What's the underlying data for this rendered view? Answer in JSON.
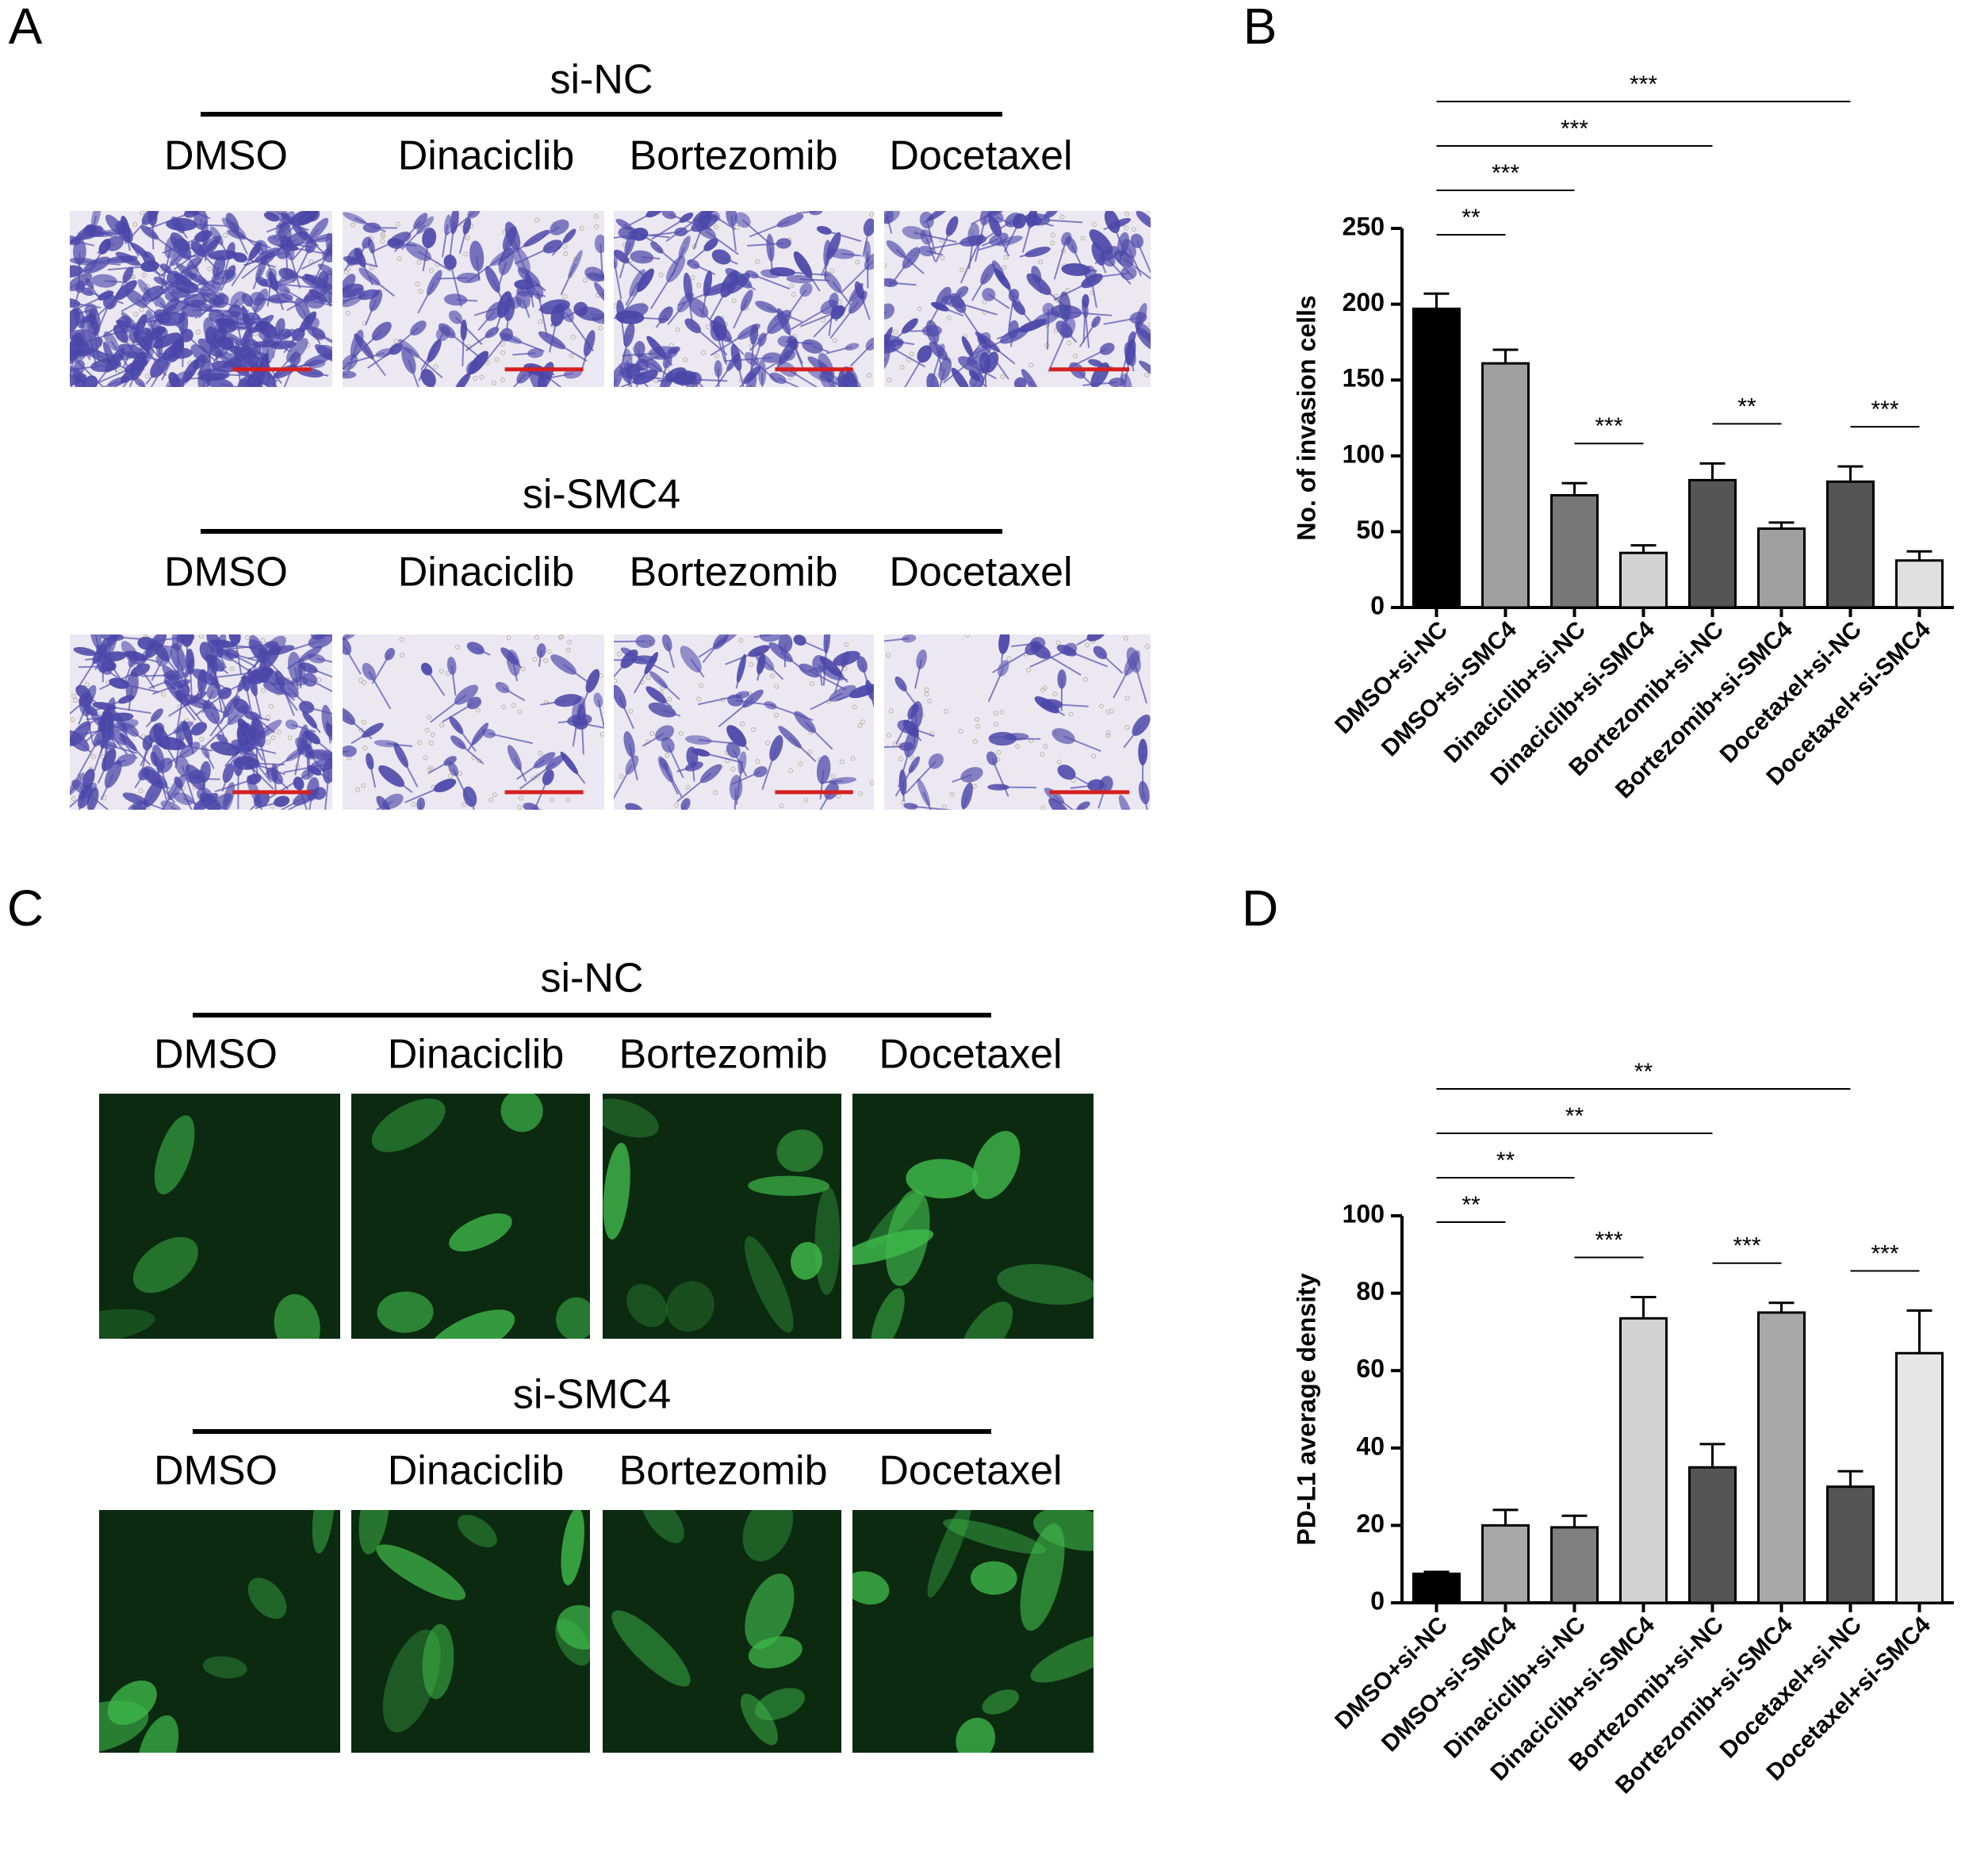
{
  "panel_labels": [
    "A",
    "B",
    "C",
    "D"
  ],
  "panel_a": {
    "groups": [
      {
        "title": "si-NC",
        "columns": [
          "DMSO",
          "Dinaciclib",
          "Bortezomib",
          "Docetaxel"
        ]
      },
      {
        "title": "si-SMC4",
        "columns": [
          "DMSO",
          "Dinaciclib",
          "Bortezomib",
          "Docetaxel"
        ]
      }
    ]
  },
  "panel_c": {
    "groups": [
      {
        "title": "si-NC",
        "columns": [
          "DMSO",
          "Dinaciclib",
          "Bortezomib",
          "Docetaxel"
        ]
      },
      {
        "title": "si-SMC4",
        "columns": [
          "DMSO",
          "Dinaciclib",
          "Bortezomib",
          "Docetaxel"
        ]
      }
    ]
  },
  "chart_data": [
    {
      "type": "bar",
      "y_label": "No. of invasion cells",
      "categories": [
        "DMSO+si-NC",
        "DMSO+si-SMC4",
        "Dinaciclib+si-NC",
        "Dinaciclib+si-SMC4",
        "Bortezomib+si-NC",
        "Bortezomib+si-SMC4",
        "Docetaxel+si-NC",
        "Docetaxel+si-SMC4"
      ],
      "values": [
        197,
        161,
        74,
        36,
        84,
        52,
        83,
        31
      ],
      "errors": [
        10,
        9,
        8,
        5,
        11,
        4,
        10,
        6
      ],
      "colors": [
        "#000000",
        "#a0a0a0",
        "#777777",
        "#d3d3d3",
        "#555555",
        "#a0a0a0",
        "#555555",
        "#e0e0e0"
      ],
      "ylim": [
        0,
        250
      ],
      "yticks": [
        0,
        50,
        100,
        150,
        200,
        250
      ],
      "grid": false,
      "significance": [
        {
          "pair": [
            "DMSO+si-NC",
            "DMSO+si-SMC4"
          ],
          "label": "**"
        },
        {
          "pair": [
            "DMSO+si-NC",
            "Dinaciclib+si-NC"
          ],
          "label": "***"
        },
        {
          "pair": [
            "DMSO+si-NC",
            "Bortezomib+si-NC"
          ],
          "label": "***"
        },
        {
          "pair": [
            "DMSO+si-NC",
            "Docetaxel+si-NC"
          ],
          "label": "***"
        },
        {
          "pair": [
            "Dinaciclib+si-NC",
            "Dinaciclib+si-SMC4"
          ],
          "label": "***"
        },
        {
          "pair": [
            "Bortezomib+si-NC",
            "Bortezomib+si-SMC4"
          ],
          "label": "**"
        },
        {
          "pair": [
            "Docetaxel+si-NC",
            "Docetaxel+si-SMC4"
          ],
          "label": "***"
        }
      ]
    },
    {
      "type": "bar",
      "y_label": "PD-L1 average density",
      "categories": [
        "DMSO+si-NC",
        "DMSO+si-SMC4",
        "Dinaciclib+si-NC",
        "Dinaciclib+si-SMC4",
        "Bortezomib+si-NC",
        "Bortezomib+si-SMC4",
        "Docetaxel+si-NC",
        "Docetaxel+si-SMC4"
      ],
      "values": [
        7.5,
        20,
        19.5,
        73.5,
        35,
        75,
        30,
        64.5
      ],
      "errors": [
        0.5,
        4,
        3,
        5.5,
        6,
        2.5,
        4,
        11
      ],
      "colors": [
        "#000000",
        "#a8a8a8",
        "#808080",
        "#d3d3d3",
        "#555555",
        "#a8a8a8",
        "#555555",
        "#e6e6e6"
      ],
      "ylim": [
        0,
        100
      ],
      "yticks": [
        0,
        20,
        40,
        60,
        80,
        100
      ],
      "grid": false,
      "significance": [
        {
          "pair": [
            "DMSO+si-NC",
            "DMSO+si-SMC4"
          ],
          "label": "**"
        },
        {
          "pair": [
            "DMSO+si-NC",
            "Dinaciclib+si-NC"
          ],
          "label": "**"
        },
        {
          "pair": [
            "DMSO+si-NC",
            "Bortezomib+si-NC"
          ],
          "label": "**"
        },
        {
          "pair": [
            "DMSO+si-NC",
            "Docetaxel+si-NC"
          ],
          "label": "**"
        },
        {
          "pair": [
            "Dinaciclib+si-NC",
            "Dinaciclib+si-SMC4"
          ],
          "label": "***"
        },
        {
          "pair": [
            "Bortezomib+si-NC",
            "Bortezomib+si-SMC4"
          ],
          "label": "***"
        },
        {
          "pair": [
            "Docetaxel+si-NC",
            "Docetaxel+si-SMC4"
          ],
          "label": "***"
        }
      ]
    }
  ]
}
